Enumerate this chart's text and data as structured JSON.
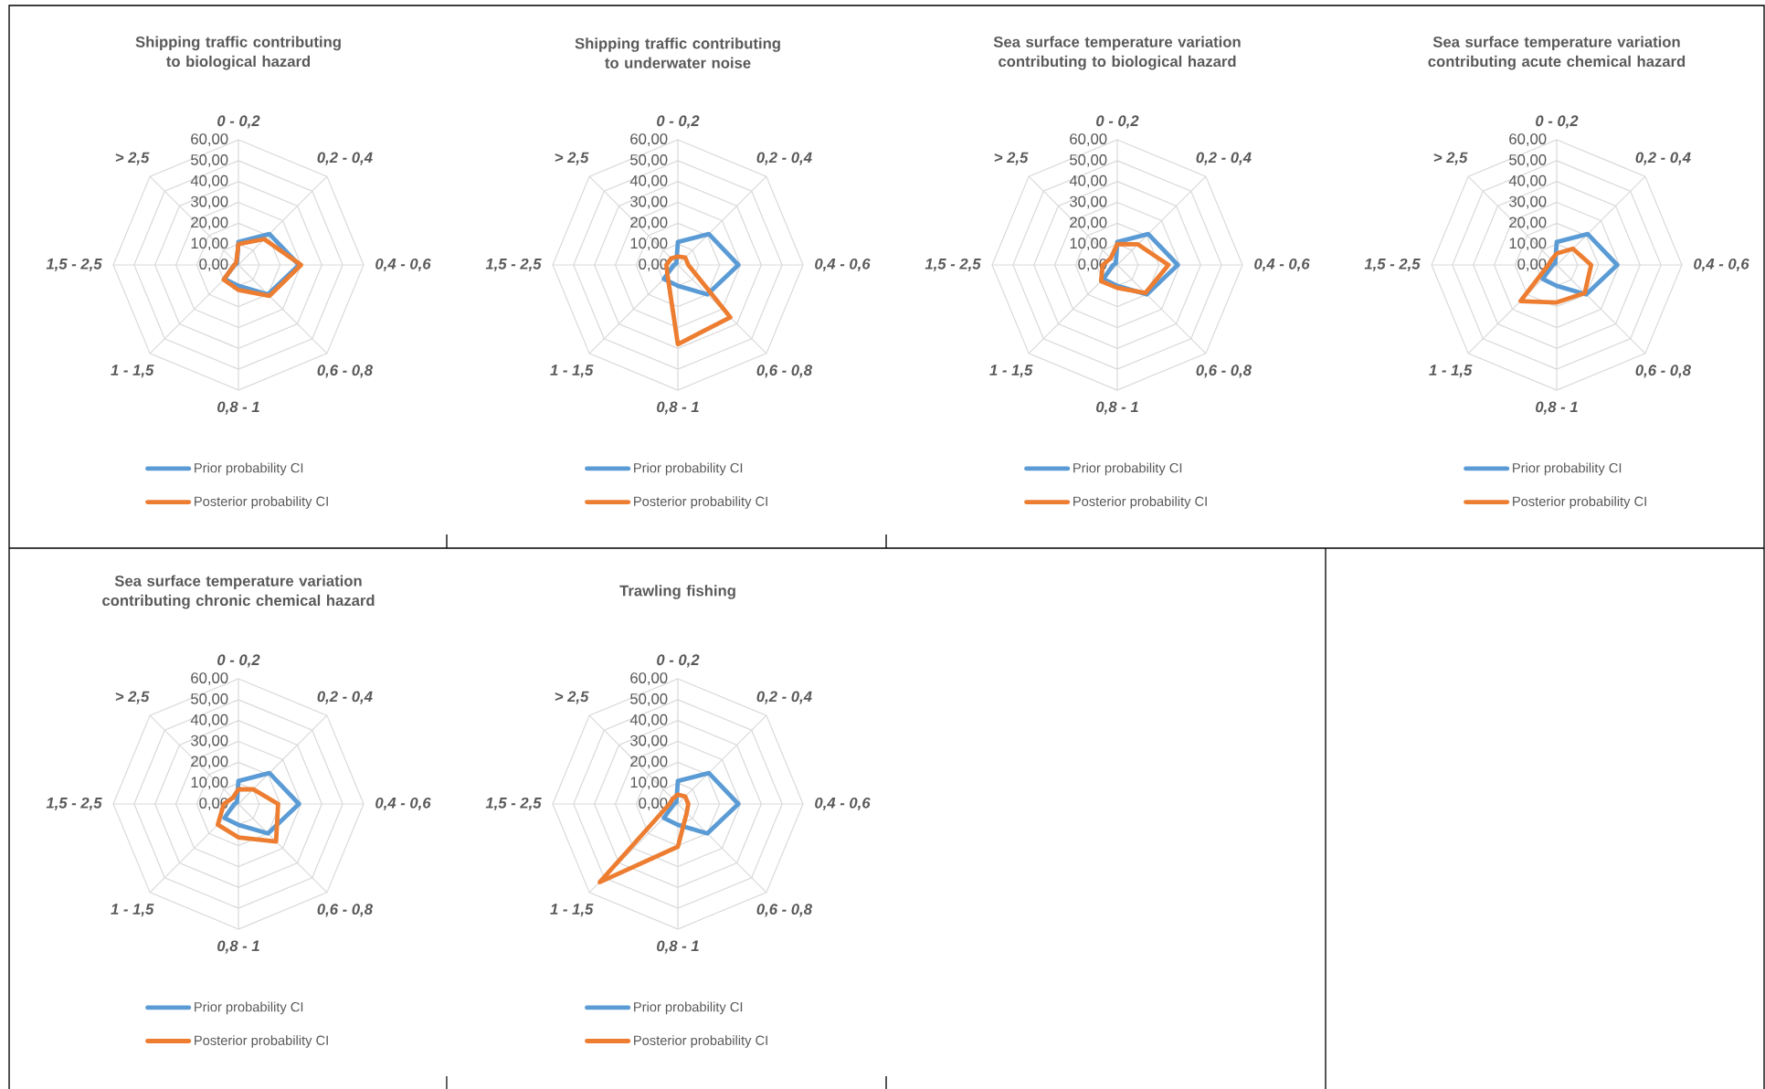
{
  "chart_data": [
    {
      "type": "radar",
      "title": "Shipping traffic contributing to biological hazard",
      "categories": [
        "0 - 0,2",
        "0,2 - 0,4",
        "0,4 - 0,6",
        "0,6 - 0,8",
        "0,8 - 1",
        "1 - 1,5",
        "1,5 - 2,5",
        "> 2,5"
      ],
      "ylim": [
        0,
        60
      ],
      "yticks": [
        {
          "value": 0,
          "label": "0,00"
        },
        {
          "value": 10,
          "label": "10,00"
        },
        {
          "value": 20,
          "label": "20,00"
        },
        {
          "value": 30,
          "label": "30,00"
        },
        {
          "value": 40,
          "label": "40,00"
        },
        {
          "value": 50,
          "label": "50,00"
        },
        {
          "value": 60,
          "label": "60,00"
        }
      ],
      "grid": true,
      "legend": "bottom",
      "series": [
        {
          "name": "Prior probability CI",
          "color": "#5b9bd5",
          "values": [
            11,
            21,
            29,
            20,
            10,
            9.5,
            2,
            1
          ]
        },
        {
          "name": "Posterior probability CI",
          "color": "#ed7d31",
          "values": [
            10,
            17.5,
            30,
            21,
            12,
            10,
            2,
            1.5
          ]
        }
      ]
    },
    {
      "type": "radar",
      "title": "Shipping traffic contributing to underwater noise",
      "categories": [
        "0 - 0,2",
        "0,2 - 0,4",
        "0,4 - 0,6",
        "0,6 - 0,8",
        "0,8 - 1",
        "1 - 1,5",
        "1,5 - 2,5",
        "> 2,5"
      ],
      "ylim": [
        0,
        60
      ],
      "yticks": [
        {
          "value": 0,
          "label": "0,00"
        },
        {
          "value": 10,
          "label": "10,00"
        },
        {
          "value": 20,
          "label": "20,00"
        },
        {
          "value": 30,
          "label": "30,00"
        },
        {
          "value": 40,
          "label": "40,00"
        },
        {
          "value": 50,
          "label": "50,00"
        },
        {
          "value": 60,
          "label": "60,00"
        }
      ],
      "grid": true,
      "legend": "bottom",
      "series": [
        {
          "name": "Prior probability CI",
          "color": "#5b9bd5",
          "values": [
            11,
            21,
            29,
            20,
            10,
            9.5,
            2,
            1
          ]
        },
        {
          "name": "Posterior probability CI",
          "color": "#ed7d31",
          "values": [
            4,
            5,
            5,
            35.5,
            38,
            7,
            5.5,
            4.5
          ]
        }
      ]
    },
    {
      "type": "radar",
      "title": "Sea surface temperature variation contributing to biological hazard",
      "categories": [
        "0 - 0,2",
        "0,2 - 0,4",
        "0,4 - 0,6",
        "0,6 - 0,8",
        "0,8 - 1",
        "1 - 1,5",
        "1,5 - 2,5",
        "> 2,5"
      ],
      "ylim": [
        0,
        60
      ],
      "yticks": [
        {
          "value": 0,
          "label": "0,00"
        },
        {
          "value": 10,
          "label": "10,00"
        },
        {
          "value": 20,
          "label": "20,00"
        },
        {
          "value": 30,
          "label": "30,00"
        },
        {
          "value": 40,
          "label": "40,00"
        },
        {
          "value": 50,
          "label": "50,00"
        },
        {
          "value": 60,
          "label": "60,00"
        }
      ],
      "grid": true,
      "legend": "bottom",
      "series": [
        {
          "name": "Prior probability CI",
          "color": "#5b9bd5",
          "values": [
            11,
            21,
            29,
            20,
            10,
            9.5,
            2,
            1
          ]
        },
        {
          "name": "Posterior probability CI",
          "color": "#ed7d31",
          "values": [
            10,
            14,
            24.5,
            19,
            11,
            11,
            7,
            4.5
          ]
        }
      ]
    },
    {
      "type": "radar",
      "title": "Sea surface temperature variation contributing acute chemical hazard",
      "categories": [
        "0 - 0,2",
        "0,2 - 0,4",
        "0,4 - 0,6",
        "0,6 - 0,8",
        "0,8 - 1",
        "1 - 1,5",
        "1,5 - 2,5",
        "> 2,5"
      ],
      "ylim": [
        0,
        60
      ],
      "yticks": [
        {
          "value": 0,
          "label": "0,00"
        },
        {
          "value": 10,
          "label": "10,00"
        },
        {
          "value": 20,
          "label": "20,00"
        },
        {
          "value": 30,
          "label": "30,00"
        },
        {
          "value": 40,
          "label": "40,00"
        },
        {
          "value": 50,
          "label": "50,00"
        },
        {
          "value": 60,
          "label": "60,00"
        }
      ],
      "grid": true,
      "legend": "bottom",
      "series": [
        {
          "name": "Prior probability CI",
          "color": "#5b9bd5",
          "values": [
            11,
            21,
            29,
            20,
            10,
            9.5,
            2,
            1
          ]
        },
        {
          "name": "Posterior probability CI",
          "color": "#ed7d31",
          "values": [
            5.5,
            11,
            16.5,
            19,
            18,
            24.5,
            4,
            3.5
          ]
        }
      ]
    },
    {
      "type": "radar",
      "title": "Sea surface temperature variation contributing chronic chemical hazard",
      "categories": [
        "0 - 0,2",
        "0,2 - 0,4",
        "0,4 - 0,6",
        "0,6 - 0,8",
        "0,8 - 1",
        "1 - 1,5",
        "1,5 - 2,5",
        "> 2,5"
      ],
      "ylim": [
        0,
        60
      ],
      "yticks": [
        {
          "value": 0,
          "label": "0,00"
        },
        {
          "value": 10,
          "label": "10,00"
        },
        {
          "value": 20,
          "label": "20,00"
        },
        {
          "value": 30,
          "label": "30,00"
        },
        {
          "value": 40,
          "label": "40,00"
        },
        {
          "value": 50,
          "label": "50,00"
        },
        {
          "value": 60,
          "label": "60,00"
        }
      ],
      "grid": true,
      "legend": "bottom",
      "series": [
        {
          "name": "Prior probability CI",
          "color": "#5b9bd5",
          "values": [
            11,
            21,
            29,
            20,
            10,
            9.5,
            2,
            1
          ]
        },
        {
          "name": "Posterior probability CI",
          "color": "#ed7d31",
          "values": [
            7,
            10,
            19,
            25.5,
            16,
            14,
            7,
            4
          ]
        }
      ]
    },
    {
      "type": "radar",
      "title": "Trawling fishing",
      "categories": [
        "0 - 0,2",
        "0,2 - 0,4",
        "0,4 - 0,6",
        "0,6 - 0,8",
        "0,8 - 1",
        "1 - 1,5",
        "1,5 - 2,5",
        "> 2,5"
      ],
      "ylim": [
        0,
        60
      ],
      "yticks": [
        {
          "value": 0,
          "label": "0,00"
        },
        {
          "value": 10,
          "label": "10,00"
        },
        {
          "value": 20,
          "label": "20,00"
        },
        {
          "value": 30,
          "label": "30,00"
        },
        {
          "value": 40,
          "label": "40,00"
        },
        {
          "value": 50,
          "label": "50,00"
        },
        {
          "value": 60,
          "label": "60,00"
        }
      ],
      "grid": true,
      "legend": "bottom",
      "series": [
        {
          "name": "Prior probability CI",
          "color": "#5b9bd5",
          "values": [
            11,
            21,
            29,
            20,
            10,
            9.5,
            2,
            1
          ]
        },
        {
          "name": "Posterior probability CI",
          "color": "#ed7d31",
          "values": [
            4.5,
            5,
            5,
            6,
            20.5,
            53,
            4,
            3.5
          ]
        }
      ]
    }
  ]
}
